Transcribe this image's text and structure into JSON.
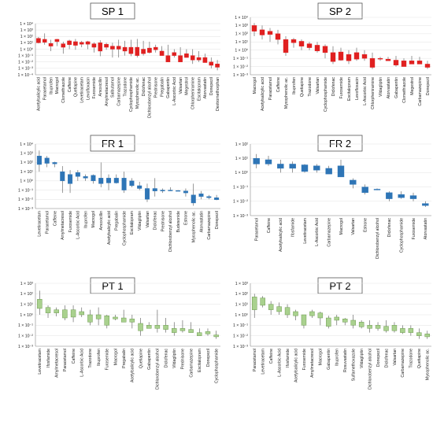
{
  "chart_data": [
    {
      "type": "box",
      "title": "SP 1",
      "y_scale": "log",
      "ylim": [
        0.0001,
        10000
      ],
      "y_tick_labels": [
        "1 × 10⁻⁴",
        "1 × 10⁻³",
        "1 × 10⁻²",
        "1 × 10⁻¹",
        "1 × 10⁰",
        "1 × 10¹",
        "1 × 10²",
        "1 × 10³",
        "1 × 10⁴"
      ],
      "color": "#e02020",
      "categories": [
        "Acetylsalicylic acid",
        "Paracetamol",
        "Ibuprofen",
        "Macrogol",
        "Clomethiazole",
        "Caffeine",
        "Quetiapine",
        "Levetiracetam",
        "Levofloxacin",
        "Furosemide",
        "Amoxicillin",
        "Amylmetacresol",
        "Salbutamol",
        "Carbamazepine",
        "Trazodone",
        "Cyclophosphamide",
        "Mycophenolic ac.",
        "Diclofenac",
        "Dichlorobenzyl alcohol",
        "Prednisone",
        "Pregabalin",
        "Gabapentin",
        "L-Ascorbic Acid",
        "Valsartan",
        "Megestrol",
        "Chlorpheniramine",
        "Escitalopram",
        "Atorvastatin",
        "Donepezil",
        "Dextromethorphan"
      ],
      "boxes": [
        [
          80,
          8,
          50,
          10
        ],
        [
          300,
          5,
          35,
          12
        ],
        [
          30,
          0.5,
          8,
          3
        ],
        [
          40,
          3,
          35,
          15
        ],
        [
          15,
          0.2,
          7,
          2
        ],
        [
          30,
          1,
          20,
          5
        ],
        [
          40,
          0.8,
          15,
          4
        ],
        [
          20,
          2,
          12,
          6
        ],
        [
          20,
          1,
          15,
          6
        ],
        [
          12,
          0.3,
          7,
          2
        ],
        [
          25,
          0.08,
          10,
          0.5
        ],
        [
          10,
          0.8,
          6,
          2
        ],
        [
          10,
          0.05,
          3,
          1
        ],
        [
          30,
          0.05,
          3,
          1
        ],
        [
          20,
          0.1,
          2,
          0.5
        ],
        [
          30,
          0.08,
          2,
          0.2
        ],
        [
          40,
          0.05,
          2,
          0.1
        ],
        [
          20,
          0.1,
          1,
          0.2
        ],
        [
          15,
          0.2,
          1.5,
          0.3
        ],
        [
          5,
          0.3,
          2,
          0.8
        ],
        [
          3,
          0.2,
          0.5,
          0.1
        ],
        [
          5,
          0.05,
          0.1,
          0.01
        ],
        [
          1,
          0.05,
          0.3,
          0.1
        ],
        [
          2,
          0.02,
          0.1,
          0.01
        ],
        [
          1,
          0.05,
          0.2,
          0.05
        ],
        [
          1,
          0.005,
          0.1,
          0.02
        ],
        [
          0.5,
          0.01,
          0.05,
          0.02
        ],
        [
          0.2,
          0.01,
          0.05,
          0.008
        ],
        [
          0.05,
          0.001,
          0.01,
          0.003
        ],
        [
          0.02,
          0.0005,
          0.005,
          0.0015
        ]
      ]
    },
    {
      "type": "box",
      "title": "SP 2",
      "y_scale": "log",
      "ylim": [
        0.001,
        10000
      ],
      "y_tick_labels": [
        "1 × 10⁻³",
        "1 × 10⁻²",
        "1 × 10⁻¹",
        "1 × 10⁰",
        "1 × 10¹",
        "1 × 10²",
        "1 × 10³",
        "1 × 10⁴"
      ],
      "color": "#e02020",
      "categories": [
        "Macrogol",
        "Acetylsalicylic acid",
        "Paracetamol",
        "Caffeine",
        "Mycophenolic ac.",
        "Ibuprofen",
        "Quetiapine",
        "Trazodone",
        "Valsartan",
        "Cyclophosphamide",
        "Diclofenac",
        "Furosemide",
        "Escitalopram",
        "Levofloxacin",
        "L-Ascorbic Acid",
        "Chlorpheniramine",
        "Vildagliptin",
        "Atorvastatin",
        "Gabapentin",
        "Clomethiazole",
        "Megestrol",
        "Carbamazepine",
        "Donepezil"
      ],
      "boxes": [
        [
          2000,
          50,
          1000,
          200
        ],
        [
          1000,
          20,
          300,
          70
        ],
        [
          500,
          10,
          200,
          80
        ],
        [
          300,
          5,
          100,
          20
        ],
        [
          50,
          0.2,
          20,
          0.5
        ],
        [
          30,
          2,
          20,
          8
        ],
        [
          20,
          1,
          12,
          3
        ],
        [
          10,
          1,
          6,
          2
        ],
        [
          10,
          0.5,
          4,
          0.8
        ],
        [
          5,
          0.1,
          3,
          0.5
        ],
        [
          3,
          0.02,
          0.5,
          0.04
        ],
        [
          2,
          0.05,
          0.6,
          0.06
        ],
        [
          1,
          0.02,
          0.3,
          0.05
        ],
        [
          2,
          0.05,
          0.5,
          0.08
        ],
        [
          1,
          0.05,
          0.3,
          0.1
        ],
        [
          0.5,
          0.005,
          0.1,
          0.008
        ],
        [
          0.15,
          0.05,
          0.1,
          0.08
        ],
        [
          0.15,
          0.05,
          0.08,
          0.05
        ],
        [
          0.2,
          0.01,
          0.06,
          0.015
        ],
        [
          0.1,
          0.01,
          0.05,
          0.01
        ],
        [
          0.2,
          0.02,
          0.05,
          0.02
        ],
        [
          0.15,
          0.02,
          0.05,
          0.02
        ],
        [
          0.05,
          0.005,
          0.02,
          0.008
        ]
      ]
    },
    {
      "type": "box",
      "title": "FR 1",
      "y_scale": "log",
      "ylim": [
        0.001,
        10000
      ],
      "y_tick_labels": [
        "1 × 10⁻³",
        "1 × 10⁻²",
        "1 × 10⁻¹",
        "1 × 10⁰",
        "1 × 10¹",
        "1 × 10²",
        "1 × 10³",
        "1 × 10⁴"
      ],
      "color": "#2e75b6",
      "categories": [
        "Levetiracetam",
        "Paracetamol",
        "Caffeine",
        "Amylmetacresol",
        "Furosemide",
        "L-Ascorbic Acid",
        "Ibuprofen",
        "Macrogol",
        "Amoxicillin",
        "Acetylsalicylic acid",
        "Pregabalin",
        "Cyclophosphamide",
        "Escitalopram",
        "Vildagliptin",
        "Valsartan",
        "Diclofenac",
        "Prednisone",
        "Dichlorobenzyl alcohol",
        "Budesonide",
        "Estrone",
        "Mycophenolic ac.",
        "Atorvastatin",
        "Carbamazepine",
        "Donepezil"
      ],
      "boxes": [
        [
          2000,
          10,
          500,
          60
        ],
        [
          500,
          30,
          300,
          80
        ],
        [
          120,
          30,
          100,
          70
        ],
        [
          40,
          0.05,
          10,
          1
        ],
        [
          15,
          0.05,
          5,
          0.5
        ],
        [
          15,
          1,
          8,
          3
        ],
        [
          5,
          1,
          3,
          2
        ],
        [
          5,
          0.5,
          4,
          1
        ],
        [
          100,
          0.2,
          2,
          0.5
        ],
        [
          5,
          0.1,
          2,
          0.6
        ],
        [
          5,
          0.5,
          2,
          0.6
        ],
        [
          10,
          0.05,
          2,
          0.1
        ],
        [
          2,
          0.2,
          1,
          0.3
        ],
        [
          0.8,
          0.1,
          0.3,
          0.15
        ],
        [
          0.5,
          0.005,
          0.15,
          0.01
        ],
        [
          2,
          0.02,
          0.15,
          0.08
        ],
        [
          0.15,
          0.05,
          0.1,
          0.08
        ],
        [
          0.2,
          0.08,
          0.1,
          0.09
        ],
        [
          0.1,
          0.08,
          0.09,
          0.085
        ],
        [
          0.15,
          0.02,
          0.08,
          0.05
        ],
        [
          0.5,
          0.002,
          0.03,
          0.004
        ],
        [
          0.08,
          0.01,
          0.04,
          0.02
        ],
        [
          0.03,
          0.01,
          0.02,
          0.015
        ],
        [
          0.03,
          0.008,
          0.015,
          0.009
        ]
      ]
    },
    {
      "type": "box",
      "title": "FR 2",
      "y_scale": "log",
      "ylim": [
        0.001,
        100
      ],
      "y_tick_labels": [
        "1 × 10⁻³",
        "1 × 10⁻²",
        "1 × 10⁻¹",
        "1 × 10⁰",
        "1 × 10¹",
        "1 × 10²"
      ],
      "color": "#2e75b6",
      "categories": [
        "Paracetamol",
        "Caffeine",
        "Acetylsalicylic acid",
        "Ifosfamide",
        "Levetiracetam",
        "L-Ascorbic Acid",
        "Carbamazepine",
        "Macrogol",
        "Valsartan",
        "Estrone",
        "Dichlorobenzyl alcohol",
        "Diclofenac",
        "Cyclophosphamide",
        "Furosemide",
        "Atorvastatin"
      ],
      "boxes": [
        [
          20,
          2,
          10,
          4
        ],
        [
          15,
          3,
          8,
          4
        ],
        [
          8,
          1,
          4,
          2
        ],
        [
          6,
          1,
          4,
          2
        ],
        [
          4,
          1,
          3.5,
          1.2
        ],
        [
          4,
          1,
          3,
          1.5
        ],
        [
          3,
          1,
          2,
          0.8
        ],
        [
          8,
          0.5,
          3,
          0.5
        ],
        [
          0.4,
          0.08,
          0.3,
          0.15
        ],
        [
          0.15,
          0.03,
          0.1,
          0.04
        ],
        [
          0.08,
          0.06,
          0.07,
          0.065
        ],
        [
          0.05,
          0.01,
          0.04,
          0.015
        ],
        [
          0.05,
          0.015,
          0.03,
          0.018
        ],
        [
          0.04,
          0.01,
          0.025,
          0.015
        ],
        [
          0.01,
          0.004,
          0.007,
          0.005
        ]
      ]
    },
    {
      "type": "box",
      "title": "PT 1",
      "y_scale": "log",
      "ylim": [
        0.001,
        1000
      ],
      "y_tick_labels": [
        "1 × 10⁻³",
        "1 × 10⁻²",
        "1 × 10⁻¹",
        "1 × 10⁰",
        "1 × 10¹",
        "1 × 10²",
        "1 × 10³"
      ],
      "color": "#a9d18e",
      "categories": [
        "Levetiracetam",
        "Ifosfamide",
        "Amylmetacresol",
        "Paracetamol",
        "Caffeine",
        "L-Ascorbic Acid",
        "Trazodone",
        "Ibuprofen",
        "Furosemide",
        "Macrogol",
        "Pregabalin",
        "Acetylsalicylic acid",
        "Quetiapine",
        "Gabapentin",
        "Dichlorobenzyl alcohol",
        "Diclofenac",
        "Vildagliptin",
        "Prednisone",
        "Carbamazepine",
        "Escitalopram",
        "Donepezil",
        "Cyclophosphamide"
      ],
      "boxes": [
        [
          200,
          1,
          30,
          4
        ],
        [
          8,
          0.5,
          5,
          1.5
        ],
        [
          5,
          0.7,
          3,
          1.5
        ],
        [
          8,
          0.3,
          3,
          0.5
        ],
        [
          8,
          0.2,
          3,
          0.6
        ],
        [
          5,
          0.6,
          2,
          1
        ],
        [
          3,
          0.1,
          1,
          0.2
        ],
        [
          5,
          0.1,
          1,
          0.4
        ],
        [
          1,
          0.05,
          0.8,
          0.1
        ],
        [
          1,
          0.3,
          0.6,
          0.4
        ],
        [
          3,
          0.2,
          0.5,
          0.2
        ],
        [
          1,
          0.05,
          0.4,
          0.2
        ],
        [
          0.5,
          0.01,
          0.15,
          0.03
        ],
        [
          0.2,
          0.05,
          0.1,
          0.05
        ],
        [
          3,
          0.02,
          0.1,
          0.05
        ],
        [
          0.5,
          0.02,
          0.1,
          0.04
        ],
        [
          0.2,
          0.01,
          0.05,
          0.02
        ],
        [
          0.3,
          0.02,
          0.05,
          0.03
        ],
        [
          0.2,
          0.02,
          0.04,
          0.02
        ],
        [
          0.05,
          0.01,
          0.02,
          0.01
        ],
        [
          0.05,
          0.01,
          0.025,
          0.015
        ],
        [
          0.03,
          0.005,
          0.012,
          0.008
        ]
      ]
    },
    {
      "type": "box",
      "title": "PT 2",
      "y_scale": "log",
      "ylim": [
        0.001,
        1000
      ],
      "y_tick_labels": [
        "1 × 10⁻³",
        "1 × 10⁻²",
        "1 × 10⁻¹",
        "1 × 10⁰",
        "1 × 10¹",
        "1 × 10²",
        "1 × 10³"
      ],
      "color": "#a9d18e",
      "categories": [
        "Paracetamol",
        "Levetiracetam",
        "Caffeine",
        "L-Ascorbic Acid",
        "Ifosfamide",
        "Acetylsalicylic acid",
        "Furosemide",
        "Amylmetacresol",
        "Macrogol",
        "Gabapentin",
        "Ibuprofen",
        "Rosuvastatin",
        "Sulfamethoxazole",
        "Vildagliptin",
        "Dichlorobenzyl alcohol",
        "Donepezil",
        "Diclofenac",
        "Valsartan",
        "Carbamazepine",
        "Trazodone",
        "Quetiapine",
        "Mycophenolic ac."
      ],
      "boxes": [
        [
          100,
          0.5,
          50,
          3
        ],
        [
          60,
          5,
          40,
          8
        ],
        [
          20,
          1,
          10,
          3
        ],
        [
          15,
          1,
          6,
          2
        ],
        [
          10,
          0.5,
          5,
          1
        ],
        [
          3,
          0.3,
          2,
          0.8
        ],
        [
          1,
          0.05,
          1,
          0.1
        ],
        [
          3,
          0.5,
          2,
          0.8
        ],
        [
          2,
          0.1,
          1.5,
          0.5
        ],
        [
          0.8,
          0.05,
          0.5,
          0.08
        ],
        [
          1,
          0.1,
          0.6,
          0.3
        ],
        [
          0.5,
          0.1,
          0.4,
          0.2
        ],
        [
          1,
          0.05,
          0.3,
          0.1
        ],
        [
          0.3,
          0.05,
          0.2,
          0.07
        ],
        [
          0.3,
          0.02,
          0.1,
          0.05
        ],
        [
          0.2,
          0.03,
          0.1,
          0.05
        ],
        [
          0.3,
          0.02,
          0.08,
          0.03
        ],
        [
          0.2,
          0.02,
          0.1,
          0.03
        ],
        [
          0.1,
          0.015,
          0.05,
          0.02
        ],
        [
          0.1,
          0.01,
          0.05,
          0.02
        ],
        [
          0.05,
          0.005,
          0.02,
          0.01
        ],
        [
          0.03,
          0.005,
          0.015,
          0.008
        ]
      ]
    }
  ]
}
